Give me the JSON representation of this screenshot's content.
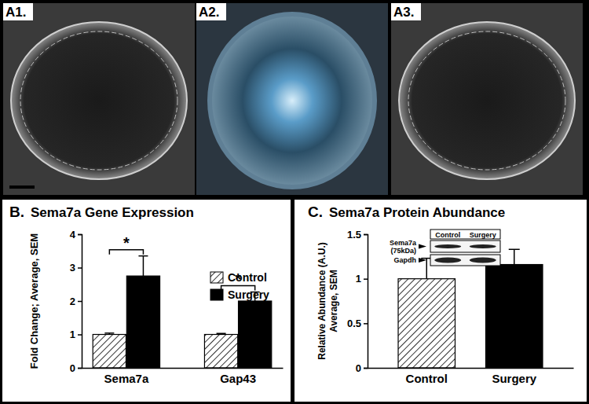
{
  "photo_panels": [
    "A1.",
    "A2.",
    "A3."
  ],
  "chart_data": [
    {
      "type": "bar",
      "panel_label": "B.",
      "title": "Sema7a Gene Expression",
      "y_label": "Fold Change; Average, SEM",
      "categories": [
        "Sema7a",
        "Gap43"
      ],
      "series": [
        {
          "name": "Control",
          "color": "#ffffff",
          "values": [
            1.0,
            1.0
          ],
          "errors": [
            0.04,
            0.03
          ]
        },
        {
          "name": "Surgery",
          "color": "#000000",
          "values": [
            2.75,
            2.0
          ],
          "errors": [
            0.6,
            0.27
          ]
        }
      ],
      "ylim": [
        0,
        4
      ],
      "yticks": [
        0,
        1,
        2,
        3,
        4
      ],
      "legend": "right",
      "annotations": [
        {
          "category": 0,
          "text": "*"
        },
        {
          "category": 1,
          "text": "*"
        }
      ]
    },
    {
      "type": "bar",
      "panel_label": "C.",
      "title": "Sema7a Protein Abundance",
      "y_label": [
        "Relative Abundance (A.U.)",
        "Average, SEM"
      ],
      "categories": [
        "Control",
        "Surgery"
      ],
      "values": [
        1.0,
        1.16
      ],
      "errors": [
        0.23,
        0.17
      ],
      "colors": [
        "#ffffff",
        "#000000"
      ],
      "ylim": [
        0,
        1.5
      ],
      "yticks": [
        0,
        0.5,
        1,
        1.5
      ],
      "blot": {
        "columns": [
          "Control",
          "Surgery"
        ],
        "rows": [
          [
            "Sema7a",
            "(75kDa)"
          ],
          [
            "Gapdh"
          ]
        ]
      }
    }
  ]
}
